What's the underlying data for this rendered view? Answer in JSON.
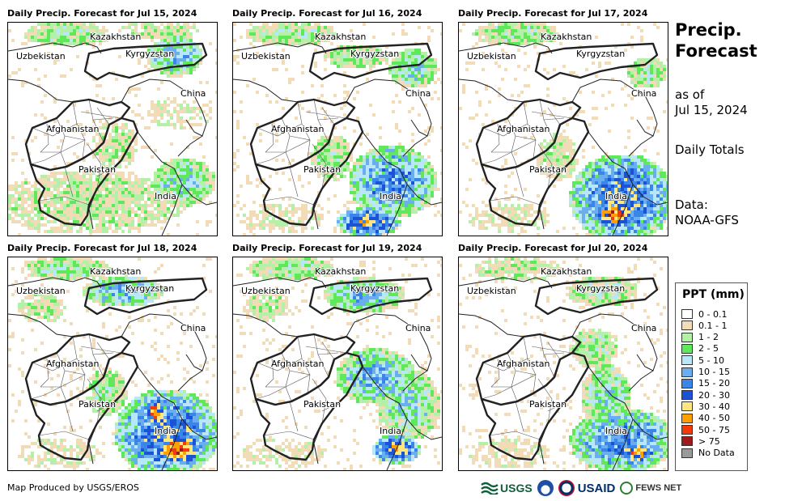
{
  "panels": [
    {
      "title": "Daily Precip. Forecast for Jul 15, 2024"
    },
    {
      "title": "Daily Precip. Forecast for Jul 16, 2024"
    },
    {
      "title": "Daily Precip. Forecast for Jul 17, 2024"
    },
    {
      "title": "Daily Precip. Forecast for Jul 18, 2024"
    },
    {
      "title": "Daily Precip. Forecast for Jul 19, 2024"
    },
    {
      "title": "Daily Precip. Forecast for Jul 20, 2024"
    }
  ],
  "map_labels": {
    "kazakhstan": "Kazakhstan",
    "uzbekistan": "Uzbekistan",
    "kyrgyzstan": "Kyrgyzstan",
    "china": "China",
    "afghanistan": "Afghanistan",
    "pakistan": "Pakistan",
    "india": "India"
  },
  "sidebar": {
    "title_line1": "Precip.",
    "title_line2": "Forecast",
    "asof_line1": "as of",
    "asof_line2": "Jul 15, 2024",
    "totals": "Daily Totals",
    "data_line1": "Data:",
    "data_line2": "NOAA-GFS"
  },
  "legend": {
    "title": "PPT (mm)",
    "items": [
      {
        "label": "0 - 0.1",
        "color": "#ffffff"
      },
      {
        "label": "0.1 - 1",
        "color": "#f2dcb8"
      },
      {
        "label": "1 - 2",
        "color": "#b5f0a8"
      },
      {
        "label": "2 - 5",
        "color": "#5ee85a"
      },
      {
        "label": "5 - 10",
        "color": "#b8e8f8"
      },
      {
        "label": "10 - 15",
        "color": "#6aaef0"
      },
      {
        "label": "15 - 20",
        "color": "#3a86e8"
      },
      {
        "label": "20 - 30",
        "color": "#1c52d6"
      },
      {
        "label": "30 - 40",
        "color": "#ffe680"
      },
      {
        "label": "40 - 50",
        "color": "#ffa000"
      },
      {
        "label": "50 - 75",
        "color": "#f03c0a"
      },
      {
        "label": "> 75",
        "color": "#a01a1a"
      },
      {
        "label": "No Data",
        "color": "#9a9a9a"
      }
    ]
  },
  "footer": {
    "credit": "Map Produced by USGS/EROS",
    "logo_usgs": "USGS",
    "logo_usaid": "USAID",
    "logo_fews": "FEWS NET"
  }
}
